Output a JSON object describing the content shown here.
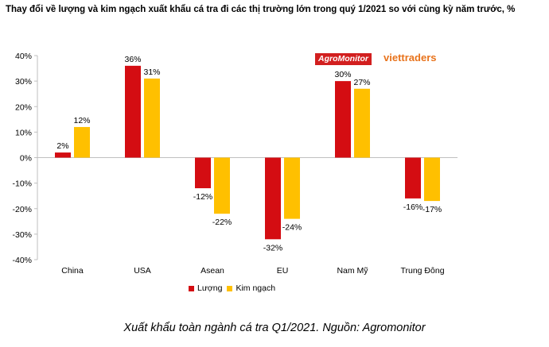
{
  "title": "Thay đổi về lượng và kim ngạch xuất khẩu cá tra đi các thị trường lớn trong quý 1/2021 so với cùng kỳ năm trước, %",
  "logos": {
    "agromonitor": "AgroMonitor",
    "viettraders": "viettraders"
  },
  "caption": "Xuất khẩu toàn ngành cá tra Q1/2021. Nguồn: Agromonitor",
  "colors": {
    "luong": "#d40d12",
    "kimngach": "#ffc000"
  },
  "chart_data": {
    "type": "bar",
    "categories": [
      "China",
      "USA",
      "Asean",
      "EU",
      "Nam Mỹ",
      "Trung Đông"
    ],
    "series": [
      {
        "name": "Lượng",
        "values": [
          2,
          36,
          -12,
          -32,
          30,
          -16
        ]
      },
      {
        "name": "Kim ngạch",
        "values": [
          12,
          31,
          -22,
          -24,
          27,
          -17
        ]
      }
    ],
    "data_labels": [
      [
        "2%",
        "36%",
        "-12%",
        "-32%",
        "30%",
        "-16%"
      ],
      [
        "12%",
        "31%",
        "-22%",
        "-24%",
        "27%",
        "-17%"
      ]
    ],
    "yticks": [
      "40%",
      "30%",
      "20%",
      "10%",
      "0%",
      "-10%",
      "-20%",
      "-30%",
      "-40%"
    ],
    "ylim": [
      -40,
      40
    ],
    "grid": false,
    "legend": "bottom"
  }
}
